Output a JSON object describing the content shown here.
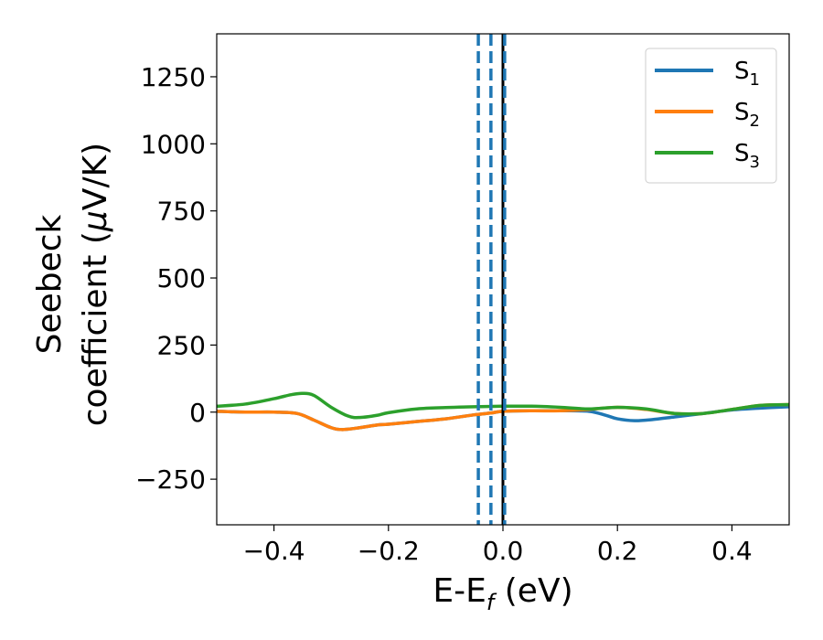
{
  "chart_data": {
    "type": "line",
    "xlabel": {
      "main": "E-E",
      "sub": "f",
      "tail": " (eV)"
    },
    "ylabel": {
      "line1": "Seebeck",
      "line2": "coefficient  (",
      "mu": "μ",
      "line2_tail": "V/K)"
    },
    "xlim": [
      -0.5,
      0.5
    ],
    "ylim": [
      -420,
      1410
    ],
    "xticks": [
      -0.4,
      -0.2,
      0.0,
      0.2,
      0.4
    ],
    "xtick_labels": [
      "−0.4",
      "−0.2",
      "0.0",
      "0.2",
      "0.4"
    ],
    "yticks": [
      -250,
      0,
      250,
      500,
      750,
      1000,
      1250
    ],
    "ytick_labels": [
      "−250",
      "0",
      "250",
      "500",
      "750",
      "1000",
      "1250"
    ],
    "grid": false,
    "legend_position": "top-right",
    "series": [
      {
        "name": "S",
        "sub": "1",
        "color": "#1f77b4",
        "x": [
          -0.5,
          -0.45,
          -0.4,
          -0.36,
          -0.33,
          -0.3,
          -0.28,
          -0.25,
          -0.22,
          -0.2,
          -0.15,
          -0.1,
          -0.05,
          -0.02,
          0.0,
          0.05,
          0.1,
          0.15,
          0.18,
          0.2,
          0.23,
          0.26,
          0.3,
          0.35,
          0.4,
          0.45,
          0.5
        ],
        "y": [
          3,
          0,
          0,
          -5,
          -30,
          -58,
          -65,
          -58,
          -48,
          -45,
          -35,
          -25,
          -10,
          -3,
          3,
          5,
          5,
          3,
          -12,
          -25,
          -32,
          -28,
          -18,
          -5,
          8,
          15,
          20
        ]
      },
      {
        "name": "S",
        "sub": "2",
        "color": "#ff7f0e",
        "x": [
          -0.5,
          -0.45,
          -0.4,
          -0.36,
          -0.33,
          -0.3,
          -0.28,
          -0.25,
          -0.22,
          -0.2,
          -0.15,
          -0.1,
          -0.05,
          -0.02,
          0.0,
          0.05,
          0.1,
          0.15,
          0.2,
          0.25,
          0.3,
          0.35,
          0.4,
          0.45,
          0.5
        ],
        "y": [
          3,
          0,
          0,
          -5,
          -30,
          -58,
          -65,
          -58,
          -48,
          -45,
          -35,
          -25,
          -10,
          -3,
          3,
          5,
          5,
          10,
          18,
          10,
          -5,
          -5,
          10,
          25,
          28
        ]
      },
      {
        "name": "S",
        "sub": "3",
        "color": "#2ca02c",
        "x": [
          -0.5,
          -0.45,
          -0.4,
          -0.37,
          -0.35,
          -0.33,
          -0.3,
          -0.27,
          -0.25,
          -0.22,
          -0.2,
          -0.15,
          -0.1,
          -0.05,
          0.0,
          0.05,
          0.1,
          0.15,
          0.2,
          0.25,
          0.3,
          0.35,
          0.4,
          0.45,
          0.5
        ],
        "y": [
          22,
          30,
          50,
          65,
          70,
          62,
          18,
          -15,
          -20,
          -12,
          -2,
          12,
          17,
          20,
          22,
          22,
          18,
          12,
          18,
          12,
          -5,
          -5,
          10,
          25,
          28
        ]
      }
    ],
    "vlines": [
      {
        "x": -0.043,
        "color": "#1f77b4",
        "style": "dashed"
      },
      {
        "x": -0.021,
        "color": "#1f77b4",
        "style": "dashed"
      },
      {
        "x": 0.0,
        "color": "#000000",
        "style": "solid"
      },
      {
        "x": 0.003,
        "color": "#1f77b4",
        "style": "dashed"
      }
    ]
  }
}
